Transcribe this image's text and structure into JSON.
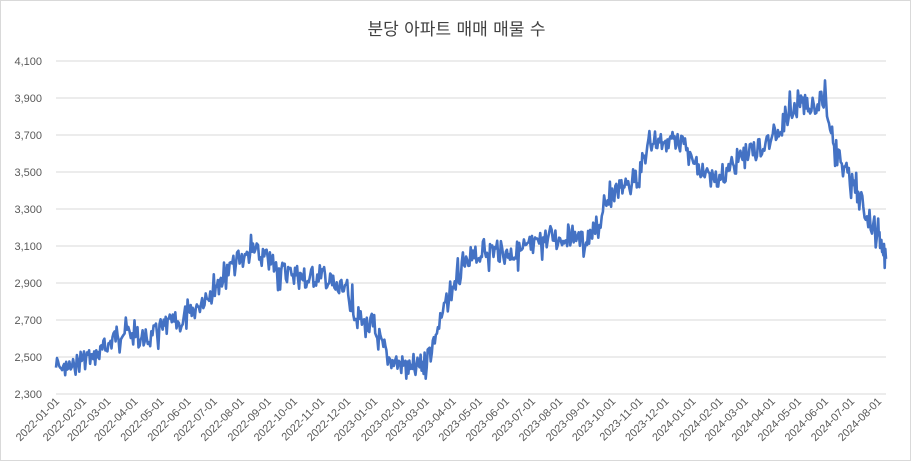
{
  "chart_data": {
    "type": "line",
    "title": "분당 아파트 매매 매물 수",
    "xlabel": "",
    "ylabel": "",
    "ylim": [
      2300,
      4100
    ],
    "y_ticks": [
      "2,300",
      "2,500",
      "2,700",
      "2,900",
      "3,100",
      "3,300",
      "3,500",
      "3,700",
      "3,900",
      "4,100"
    ],
    "x_ticks": [
      "2022-01-01",
      "2022-02-01",
      "2022-03-01",
      "2022-04-01",
      "2022-05-01",
      "2022-06-01",
      "2022-07-01",
      "2022-08-01",
      "2022-09-01",
      "2022-10-01",
      "2022-11-01",
      "2022-12-01",
      "2023-01-01",
      "2023-02-01",
      "2023-03-01",
      "2023-04-01",
      "2023-05-01",
      "2023-06-01",
      "2023-07-01",
      "2023-08-01",
      "2023-09-01",
      "2023-10-01",
      "2023-11-01",
      "2023-12-01",
      "2024-01-01",
      "2024-02-01",
      "2024-03-01",
      "2024-04-01",
      "2024-05-01",
      "2024-06-01",
      "2024-07-01",
      "2024-08-01"
    ],
    "grid": true,
    "line_color": "#4472C4",
    "series": [
      {
        "x": [
          "2022-01-01",
          "2022-01-15",
          "2022-02-01",
          "2022-02-15",
          "2022-03-01",
          "2022-03-15",
          "2022-04-01",
          "2022-04-15",
          "2022-05-01",
          "2022-05-15",
          "2022-06-01",
          "2022-06-15",
          "2022-07-01",
          "2022-07-15",
          "2022-08-01",
          "2022-08-15",
          "2022-09-01",
          "2022-09-15",
          "2022-10-01",
          "2022-10-15",
          "2022-11-01",
          "2022-11-15",
          "2022-12-01",
          "2022-12-15",
          "2023-01-01",
          "2023-01-15",
          "2023-02-01",
          "2023-02-15",
          "2023-03-01",
          "2023-03-15",
          "2023-04-01",
          "2023-04-15",
          "2023-05-01",
          "2023-05-15",
          "2023-06-01",
          "2023-06-15",
          "2023-07-01",
          "2023-07-15",
          "2023-08-01",
          "2023-08-15",
          "2023-09-01",
          "2023-09-15",
          "2023-10-01",
          "2023-10-15",
          "2023-11-01",
          "2023-11-15",
          "2023-12-01",
          "2023-12-15",
          "2024-01-01",
          "2024-01-15",
          "2024-02-01",
          "2024-02-15",
          "2024-03-01",
          "2024-03-15",
          "2024-04-01",
          "2024-04-15",
          "2024-05-01",
          "2024-05-15",
          "2024-06-01",
          "2024-06-15",
          "2024-07-01",
          "2024-07-15",
          "2024-08-01",
          "2024-08-10"
        ],
        "values": [
          2450,
          2430,
          2490,
          2500,
          2560,
          2640,
          2620,
          2590,
          2640,
          2680,
          2700,
          2800,
          2880,
          2950,
          3030,
          3070,
          3020,
          2960,
          2960,
          2910,
          2950,
          2880,
          2840,
          2700,
          2640,
          2500,
          2460,
          2420,
          2480,
          2650,
          2880,
          2980,
          3060,
          3080,
          3060,
          3070,
          3080,
          3140,
          3150,
          3160,
          3120,
          3200,
          3380,
          3420,
          3500,
          3680,
          3660,
          3690,
          3560,
          3460,
          3480,
          3520,
          3600,
          3620,
          3680,
          3790,
          3850,
          3870,
          3880,
          3600,
          3450,
          3300,
          3170,
          3030
        ]
      }
    ]
  }
}
